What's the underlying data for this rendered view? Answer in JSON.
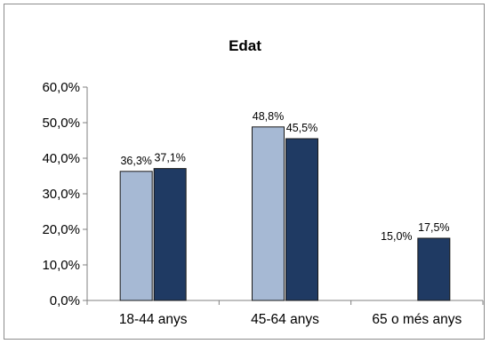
{
  "chart_data": {
    "type": "bar",
    "title": "Edat",
    "xlabel": "",
    "ylabel": "",
    "categories": [
      "18-44 anys",
      "45-64 anys",
      "65 o més anys"
    ],
    "series": [
      {
        "values": [
          36.3,
          48.8,
          0
        ],
        "labels": [
          "36,3%",
          "48,8%",
          ""
        ],
        "color": "#a6b9d4"
      },
      {
        "values": [
          37.1,
          45.5,
          17.5
        ],
        "labels": [
          "37,1%",
          "45,5%",
          "17,5%"
        ],
        "color": "#1f3a63"
      }
    ],
    "extra_label": "15,0%",
    "ylim": [
      0,
      60
    ],
    "yticks": [
      0,
      10,
      20,
      30,
      40,
      50,
      60
    ],
    "ytick_labels": [
      "0,0%",
      "10,0%",
      "20,0%",
      "30,0%",
      "40,0%",
      "50,0%",
      "60,0%"
    ],
    "grid": false,
    "legend": "none"
  }
}
